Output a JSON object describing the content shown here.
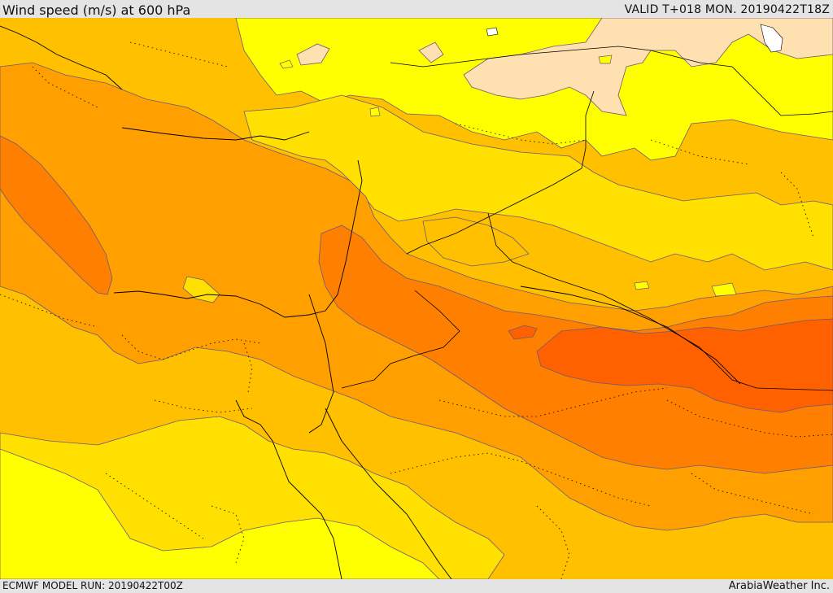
{
  "header": {
    "title": "Wind speed (m/s) at 600 hPa",
    "valid_time": "VALID T+018 MON. 20190422T18Z"
  },
  "footer": {
    "model_run": "ECMWF MODEL RUN: 20190422T00Z",
    "credit": "ArabiaWeather Inc."
  },
  "map": {
    "variable": "Wind speed",
    "units": "m/s",
    "pressure_level": "600 hPa",
    "colors": {
      "lightest": "#ffe0b0",
      "yellow": "#ffff00",
      "gold": "#ffe000",
      "amber": "#ffc000",
      "orange": "#ffa000",
      "dark_orange": "#ff8000",
      "red_orange": "#ff6000",
      "water": "#ffffff",
      "border": "#000000",
      "contour": "#6a5a7a"
    }
  }
}
